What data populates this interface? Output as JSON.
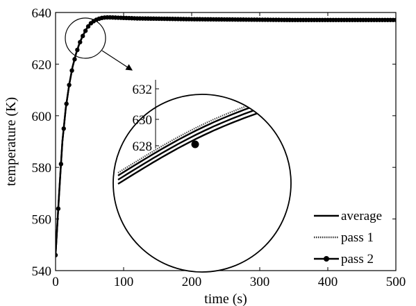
{
  "chart_data": {
    "type": "line",
    "xlabel": "time (s)",
    "ylabel": "temperature (K)",
    "xlim": [
      0,
      500
    ],
    "ylim": [
      540,
      640
    ],
    "xticks": [
      0,
      100,
      200,
      300,
      400,
      500
    ],
    "yticks": [
      540,
      560,
      580,
      600,
      620,
      640
    ],
    "grid": false,
    "legend_position": "bottom-right",
    "series": [
      {
        "name": "average",
        "style": "solid",
        "x": [
          0,
          5,
          10,
          15,
          20,
          25,
          30,
          35,
          40,
          45,
          50,
          55,
          60,
          65,
          70,
          75,
          80,
          90,
          100,
          120,
          150,
          200,
          250,
          300,
          350,
          400,
          450,
          500
        ],
        "y": [
          546,
          569,
          590,
          603,
          612,
          619,
          624,
          628,
          631,
          633.5,
          635.5,
          636.6,
          637.3,
          637.8,
          638.0,
          638.1,
          638.1,
          638.0,
          638.0,
          637.8,
          637.6,
          637.5,
          637.4,
          637.3,
          637.2,
          637.2,
          637.2,
          637.2
        ]
      },
      {
        "name": "pass 1",
        "style": "dotted",
        "x": [
          0,
          5,
          10,
          15,
          20,
          25,
          30,
          35,
          40,
          45,
          50,
          55,
          60,
          65,
          70,
          75,
          80,
          90,
          100,
          120,
          150,
          200,
          250,
          300,
          350,
          400,
          450,
          500
        ],
        "y": [
          546,
          569,
          590,
          603,
          612,
          619,
          624,
          628.2,
          631.2,
          633.6,
          635.6,
          636.7,
          637.4,
          637.9,
          638.1,
          638.2,
          638.1,
          638.0,
          638.0,
          637.8,
          637.6,
          637.5,
          637.4,
          637.3,
          637.2,
          637.2,
          637.2,
          637.2
        ]
      },
      {
        "name": "pass 2",
        "style": "solid-marker",
        "x": [
          0,
          5,
          10,
          15,
          20,
          25,
          30,
          35,
          40,
          45,
          50,
          55,
          60,
          65,
          70,
          75,
          80,
          90,
          100,
          120,
          150,
          200,
          250,
          300,
          350,
          400,
          450,
          500
        ],
        "y": [
          546,
          568.5,
          589.8,
          602.8,
          611.9,
          618.9,
          623.9,
          627.9,
          630.9,
          633.4,
          635.4,
          636.5,
          637.2,
          637.7,
          638.0,
          638.1,
          638.1,
          638.0,
          637.9,
          637.7,
          637.6,
          637.4,
          637.3,
          637.2,
          637.1,
          637.1,
          637.1,
          637.1
        ]
      }
    ],
    "inset": {
      "type": "zoom",
      "source_center": [
        40,
        629.5
      ],
      "yticks": [
        628,
        630,
        632
      ],
      "marker_point": [
        205,
        628.0
      ]
    }
  }
}
